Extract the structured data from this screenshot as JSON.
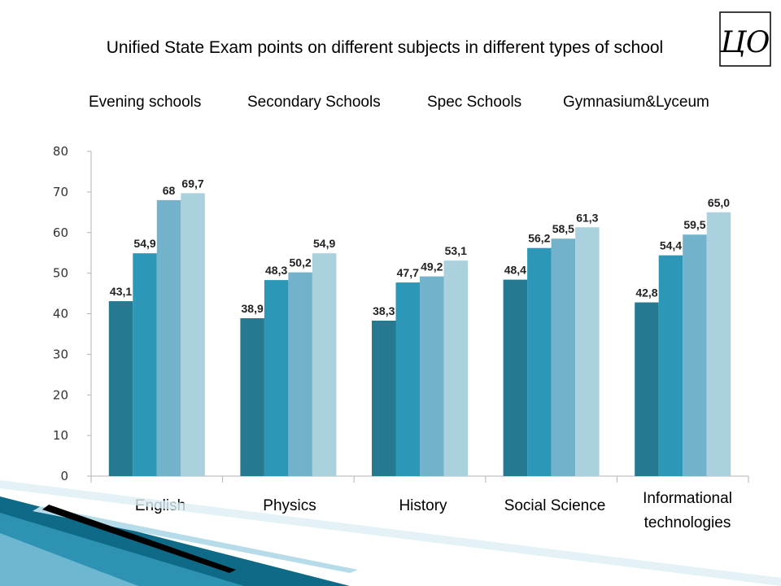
{
  "chart_data": {
    "type": "bar",
    "title": "Unified State Exam points on different subjects in different types of school",
    "categories": [
      "English",
      "Physics",
      "History",
      "Social Science",
      "Informational technologies"
    ],
    "series": [
      {
        "name": "Evening schools",
        "values": [
          43.1,
          38.9,
          38.3,
          48.4,
          42.8
        ],
        "labels": [
          "43,1",
          "38,9",
          "38,3",
          "48,4",
          "42,8"
        ],
        "color": "#257A92"
      },
      {
        "name": "Secondary Schools",
        "values": [
          54.9,
          48.3,
          47.7,
          56.2,
          54.4
        ],
        "labels": [
          "54,9",
          "48,3",
          "47,7",
          "56,2",
          "54,4"
        ],
        "color": "#2C97B6"
      },
      {
        "name": "Spec Schools",
        "values": [
          68,
          50.2,
          49.2,
          58.5,
          59.5
        ],
        "labels": [
          "68",
          "50,2",
          "49,2",
          "58,5",
          "59,5"
        ],
        "color": "#72B3CB"
      },
      {
        "name": "Gymnasium&Lyceum",
        "values": [
          69.7,
          54.9,
          53.1,
          61.3,
          65.0
        ],
        "labels": [
          "69,7",
          "54,9",
          "53,1",
          "61,3",
          "65,0"
        ],
        "color": "#ABD0DE"
      }
    ],
    "yticks": [
      "0",
      "10",
      "20",
      "30",
      "40",
      "50",
      "60",
      "70",
      "80"
    ],
    "ylim": [
      0,
      80
    ],
    "legend": "top",
    "grid": false
  },
  "colors": {
    "axis": "#B3B3B3",
    "deco_dark": "#0E6A86",
    "deco_light": "#B6DCEA"
  },
  "logo": {
    "icon": "monogram-logo-icon",
    "text": "ЦО"
  }
}
